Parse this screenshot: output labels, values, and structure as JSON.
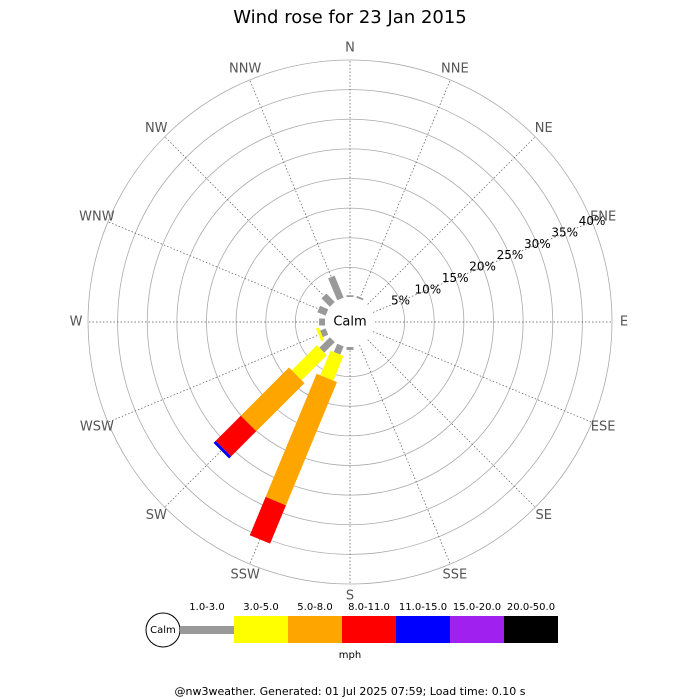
{
  "chart_data": {
    "type": "windrose",
    "title": "Wind rose for 23 Jan 2015",
    "categories": [
      "N",
      "NNE",
      "NE",
      "ENE",
      "E",
      "ESE",
      "SE",
      "SSE",
      "S",
      "SSW",
      "SW",
      "WSW",
      "W",
      "WNW",
      "NW",
      "NNW"
    ],
    "rlim": [
      0,
      40
    ],
    "rticks": [
      {
        "value": 5,
        "label": "5%"
      },
      {
        "value": 10,
        "label": "10%"
      },
      {
        "value": 15,
        "label": "15%"
      },
      {
        "value": 20,
        "label": "20%"
      },
      {
        "value": 25,
        "label": "25%"
      },
      {
        "value": 30,
        "label": "30%"
      },
      {
        "value": 35,
        "label": "35%"
      },
      {
        "value": 40,
        "label": "40%"
      }
    ],
    "center_label": "Calm",
    "unit_label": "mph",
    "series": [
      {
        "name": "1.0-3.0",
        "color": "#999999",
        "values": [
          0.3,
          0.3,
          0,
          0,
          0,
          0,
          0,
          0,
          0.5,
          1.5,
          2.5,
          1,
          1,
          1.5,
          2,
          4
        ]
      },
      {
        "name": "3.0-5.0",
        "color": "#ffff00",
        "values": [
          0,
          0,
          0,
          0,
          0,
          0,
          0,
          0,
          0,
          4.5,
          6,
          0.5,
          0,
          0,
          0,
          0
        ]
      },
      {
        "name": "5.0-8.0",
        "color": "#ffa500",
        "values": [
          0,
          0,
          0,
          0,
          0,
          0,
          0,
          0,
          0,
          22.5,
          11.5,
          0,
          0,
          0,
          0,
          0
        ]
      },
      {
        "name": "8.0-11.0",
        "color": "#ff0000",
        "values": [
          0,
          0,
          0,
          0,
          0,
          0,
          0,
          0,
          0,
          7,
          6,
          0,
          0,
          0,
          0,
          0
        ]
      },
      {
        "name": "11.0-15.0",
        "color": "#0000ff",
        "values": [
          0,
          0,
          0,
          0,
          0,
          0,
          0,
          0,
          0,
          0,
          0.5,
          0,
          0,
          0,
          0,
          0
        ]
      },
      {
        "name": "15.0-20.0",
        "color": "#a020f0",
        "values": [
          0,
          0,
          0,
          0,
          0,
          0,
          0,
          0,
          0,
          0,
          0,
          0,
          0,
          0,
          0,
          0
        ]
      },
      {
        "name": "20.0-50.0",
        "color": "#000000",
        "values": [
          0,
          0,
          0,
          0,
          0,
          0,
          0,
          0,
          0,
          0,
          0,
          0,
          0,
          0,
          0,
          0
        ]
      }
    ],
    "footer": "@nw3weather. Generated: 01 Jul 2025 07:59; Load time: 0.10 s"
  }
}
